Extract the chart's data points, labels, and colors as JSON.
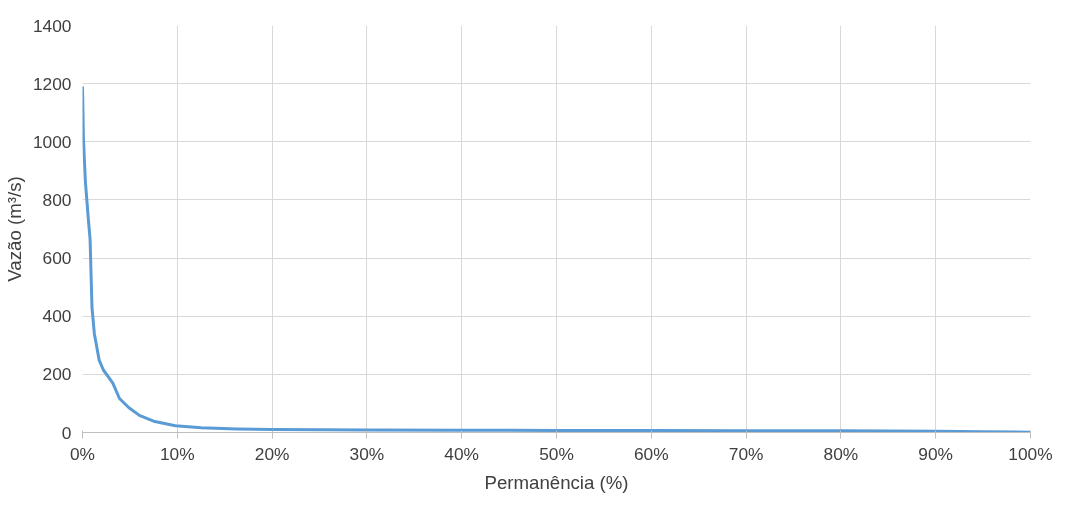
{
  "chart_data": {
    "type": "line",
    "xlabel": "Permanência (%)",
    "ylabel": "Vazão (m³/s)",
    "x": [
      0,
      0.1,
      0.3,
      0.6,
      0.8,
      1.0,
      1.25,
      1.75,
      2.2,
      3.2,
      3.9,
      4.9,
      6.0,
      7.5,
      9.8,
      12.5,
      16.3,
      20,
      30,
      40,
      50,
      60,
      70,
      80,
      90,
      95,
      100
    ],
    "series": [
      {
        "color": "#5b9bd5",
        "values": [
          1190,
          1010,
          865,
          740,
          665,
          430,
          340,
          250,
          215,
          170,
          117,
          85,
          59,
          39,
          23,
          16,
          12,
          10,
          9,
          8,
          7,
          7,
          6,
          6,
          4,
          3,
          1
        ]
      }
    ],
    "xlim": [
      0,
      100
    ],
    "xticks": [
      {
        "value": 0,
        "label": "0%"
      },
      {
        "value": 10,
        "label": "10%"
      },
      {
        "value": 20,
        "label": "20%"
      },
      {
        "value": 30,
        "label": "30%"
      },
      {
        "value": 40,
        "label": "40%"
      },
      {
        "value": 50,
        "label": "50%"
      },
      {
        "value": 60,
        "label": "60%"
      },
      {
        "value": 70,
        "label": "70%"
      },
      {
        "value": 80,
        "label": "80%"
      },
      {
        "value": 90,
        "label": "90%"
      },
      {
        "value": 100,
        "label": "100%"
      }
    ],
    "ylim": [
      0,
      1400
    ],
    "yticks": [
      0,
      200,
      400,
      600,
      800,
      1000,
      1200,
      1400
    ],
    "grid": true,
    "marker": "none",
    "line_style": "solid"
  }
}
